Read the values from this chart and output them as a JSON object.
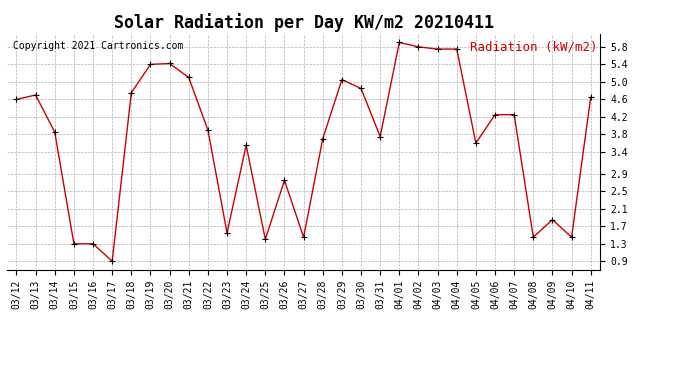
{
  "title": "Solar Radiation per Day KW/m2 20210411",
  "ylabel_text": "Radiation (kW/m2)",
  "copyright": "Copyright 2021 Cartronics.com",
  "dates": [
    "03/12",
    "03/13",
    "03/14",
    "03/15",
    "03/16",
    "03/17",
    "03/18",
    "03/19",
    "03/20",
    "03/21",
    "03/22",
    "03/23",
    "03/24",
    "03/25",
    "03/26",
    "03/27",
    "03/28",
    "03/29",
    "03/30",
    "03/31",
    "04/01",
    "04/02",
    "04/03",
    "04/04",
    "04/05",
    "04/06",
    "04/07",
    "04/08",
    "04/09",
    "04/10",
    "04/11"
  ],
  "values": [
    4.6,
    4.7,
    3.85,
    1.3,
    1.3,
    0.9,
    4.75,
    5.4,
    5.42,
    5.1,
    3.9,
    1.55,
    3.55,
    1.4,
    2.75,
    1.45,
    3.7,
    5.05,
    4.85,
    3.75,
    5.9,
    5.8,
    5.75,
    5.75,
    3.6,
    4.25,
    4.25,
    1.45,
    1.85,
    1.45,
    4.65
  ],
  "line_color": "#cc0000",
  "marker_color": "#000000",
  "grid_color": "#b0b0b0",
  "bg_color": "#ffffff",
  "ylim": [
    0.7,
    6.1
  ],
  "yticks": [
    0.9,
    1.3,
    1.7,
    2.1,
    2.5,
    2.9,
    3.4,
    3.8,
    4.2,
    4.6,
    5.0,
    5.4,
    5.8
  ],
  "title_fontsize": 12,
  "ylabel_fontsize": 9,
  "copyright_fontsize": 7,
  "tick_fontsize": 7
}
